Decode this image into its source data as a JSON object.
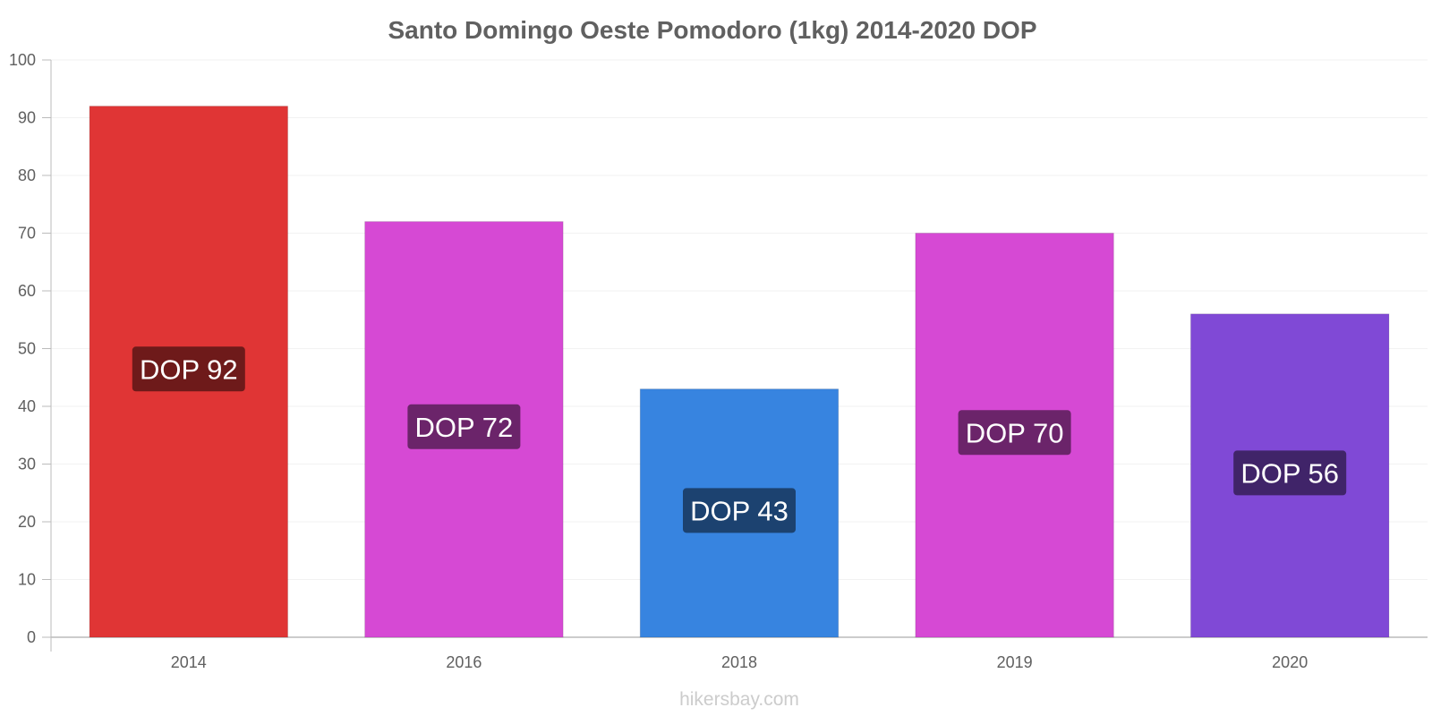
{
  "chart_data": {
    "type": "bar",
    "title": "Santo Domingo Oeste Pomodoro (1kg) 2014-2020 DOP",
    "xlabel": "",
    "ylabel": "",
    "ylim": [
      0,
      100
    ],
    "yticks": [
      0,
      10,
      20,
      30,
      40,
      50,
      60,
      70,
      80,
      90,
      100
    ],
    "categories": [
      "2014",
      "2016",
      "2018",
      "2019",
      "2020"
    ],
    "values": [
      92,
      72,
      43,
      70,
      56
    ],
    "data_labels": [
      "DOP 92",
      "DOP 72",
      "DOP 43",
      "DOP 70",
      "DOP 56"
    ],
    "bar_colors": [
      "#e03535",
      "#d649d4",
      "#3784e0",
      "#d649d4",
      "#8049d6"
    ],
    "label_box_colors": [
      "#6e1a1a",
      "#6b246a",
      "#1c4270",
      "#6b246a",
      "#402469"
    ],
    "grid": true,
    "legend": "none"
  },
  "watermark": "hikersbay.com"
}
